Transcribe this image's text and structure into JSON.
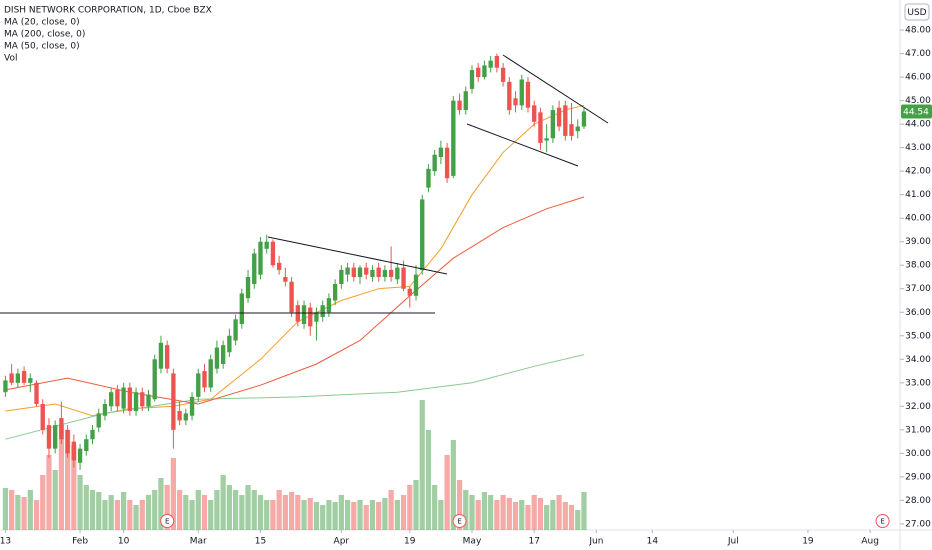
{
  "chart_data": {
    "type": "candlestick",
    "title": "DISH NETWORK CORPORATION, 1D, Cboe BZX",
    "currency": "USD",
    "volume_name": "Vol",
    "up_color": "#43a047",
    "down_color": "#ef5350",
    "open": [
      32.6,
      33.4,
      33.0,
      33.5,
      33.0,
      33.0,
      32.1,
      31.2,
      30.2,
      31.5,
      31.0,
      30.5,
      29.6,
      30.1,
      30.6,
      31.1,
      31.6,
      32.0,
      32.7,
      31.9,
      32.8,
      31.8,
      32.6,
      32.0,
      32.3,
      33.6,
      34.6,
      33.4,
      31.8,
      31.4,
      31.6,
      32.4,
      33.5,
      32.8,
      33.6,
      33.8,
      34.3,
      34.8,
      35.5,
      36.6,
      37.2,
      37.6,
      38.7,
      39.0,
      38.1,
      37.5,
      37.3,
      36.3,
      35.5,
      36.2,
      35.6,
      35.8,
      36.0,
      36.5,
      37.2,
      37.6,
      37.9,
      37.5,
      37.9,
      37.5,
      37.9,
      37.5,
      37.8,
      37.4,
      37.9,
      37.0,
      36.7,
      37.8,
      41.3,
      42.0,
      42.6,
      43.0,
      41.8,
      45.0,
      44.6,
      45.5,
      46.4,
      46.0,
      46.4,
      46.9,
      46.4,
      45.8,
      45.1,
      44.8,
      45.8,
      44.8,
      44.5,
      43.3,
      43.4,
      44.7,
      44.8,
      44.0,
      43.7,
      43.9
    ],
    "high": [
      33.3,
      33.8,
      33.6,
      33.7,
      33.4,
      33.1,
      32.3,
      31.5,
      31.4,
      32.2,
      31.2,
      30.8,
      30.4,
      30.8,
      31.2,
      31.9,
      32.3,
      32.8,
      32.9,
      33.0,
      33.0,
      32.8,
      32.8,
      32.7,
      34.2,
      35.0,
      34.8,
      33.6,
      32.2,
      31.9,
      32.6,
      33.6,
      33.8,
      34.2,
      34.8,
      34.8,
      35.3,
      35.9,
      37.0,
      37.8,
      38.7,
      39.2,
      39.3,
      39.1,
      38.4,
      37.9,
      37.5,
      36.5,
      36.5,
      36.4,
      36.2,
      36.5,
      36.8,
      37.4,
      38.0,
      38.1,
      38.1,
      38.0,
      38.1,
      38.0,
      38.1,
      38.0,
      38.8,
      38.1,
      38.2,
      37.1,
      38.0,
      41.0,
      42.3,
      42.9,
      43.3,
      43.2,
      45.2,
      45.3,
      45.6,
      46.5,
      46.6,
      46.7,
      46.9,
      47.0,
      46.6,
      46.0,
      45.4,
      46.1,
      46.0,
      45.0,
      44.7,
      44.0,
      44.8,
      45.0,
      45.0,
      44.9,
      44.2,
      44.7
    ],
    "low": [
      32.4,
      32.9,
      32.8,
      32.9,
      32.6,
      32.0,
      30.8,
      29.8,
      30.0,
      30.4,
      29.8,
      29.4,
      29.3,
      29.9,
      30.4,
      30.9,
      31.4,
      31.8,
      31.8,
      31.7,
      31.6,
      31.6,
      31.8,
      31.8,
      32.2,
      33.4,
      33.4,
      30.2,
      31.2,
      31.2,
      31.4,
      32.2,
      32.6,
      32.6,
      33.4,
      33.6,
      34.1,
      34.6,
      35.3,
      36.4,
      37.0,
      37.4,
      38.5,
      37.9,
      37.6,
      37.1,
      35.8,
      35.4,
      35.3,
      35.0,
      34.8,
      35.6,
      35.8,
      36.3,
      37.0,
      37.3,
      37.3,
      37.2,
      37.4,
      37.3,
      37.3,
      37.3,
      37.3,
      37.2,
      36.9,
      36.2,
      36.5,
      37.6,
      41.1,
      41.8,
      42.3,
      41.5,
      41.7,
      44.4,
      44.4,
      45.3,
      45.8,
      45.9,
      46.2,
      46.2,
      45.6,
      44.4,
      44.5,
      44.6,
      44.5,
      43.9,
      42.9,
      42.8,
      43.2,
      43.7,
      43.3,
      43.3,
      43.4,
      43.8
    ],
    "close": [
      33.1,
      33.0,
      33.4,
      33.0,
      33.2,
      32.1,
      31.0,
      30.2,
      31.2,
      30.6,
      30.0,
      29.7,
      30.2,
      30.6,
      31.0,
      31.7,
      32.1,
      32.6,
      32.0,
      32.8,
      31.8,
      32.6,
      32.0,
      32.5,
      34.0,
      34.7,
      33.6,
      31.0,
      31.4,
      31.7,
      32.4,
      33.4,
      32.8,
      34.0,
      34.5,
      34.6,
      35.0,
      35.7,
      36.8,
      37.5,
      38.5,
      39.0,
      39.0,
      38.0,
      37.8,
      37.3,
      36.0,
      35.6,
      36.3,
      35.4,
      36.0,
      36.3,
      36.6,
      37.2,
      37.8,
      37.9,
      37.5,
      37.9,
      37.6,
      37.8,
      37.5,
      37.8,
      37.5,
      37.9,
      37.0,
      36.7,
      37.6,
      40.8,
      42.1,
      42.7,
      43.0,
      41.7,
      45.0,
      44.6,
      45.4,
      46.3,
      46.0,
      46.5,
      46.7,
      46.4,
      45.8,
      44.6,
      44.8,
      45.9,
      44.7,
      44.1,
      43.2,
      43.4,
      44.6,
      43.9,
      43.5,
      43.5,
      43.9,
      44.54
    ],
    "volume": [
      42,
      40,
      35,
      33,
      40,
      30,
      55,
      75,
      60,
      105,
      100,
      85,
      55,
      45,
      40,
      38,
      30,
      35,
      30,
      38,
      30,
      25,
      30,
      35,
      40,
      52,
      45,
      72,
      40,
      35,
      30,
      40,
      35,
      30,
      40,
      55,
      45,
      40,
      35,
      45,
      40,
      35,
      30,
      30,
      40,
      35,
      38,
      35,
      30,
      32,
      28,
      25,
      30,
      28,
      35,
      30,
      28,
      30,
      25,
      30,
      28,
      32,
      40,
      30,
      35,
      45,
      50,
      130,
      100,
      45,
      30,
      75,
      90,
      50,
      40,
      35,
      30,
      38,
      35,
      30,
      35,
      32,
      28,
      30,
      25,
      35,
      32,
      25,
      30,
      35,
      28,
      25,
      20,
      38
    ],
    "vlim": [
      0,
      530
    ],
    "series": [
      {
        "name": "MA (20, close, 0)",
        "color": "#f59d2a",
        "x": [
          0,
          8,
          14,
          20,
          27,
          33,
          41,
          47,
          54,
          60,
          65,
          70,
          75,
          80,
          85,
          90,
          93
        ],
        "values": [
          31.8,
          32.1,
          31.6,
          31.9,
          32.0,
          32.3,
          34.0,
          35.6,
          36.5,
          37.0,
          37.1,
          38.7,
          41.0,
          42.8,
          44.0,
          44.6,
          44.8
        ]
      },
      {
        "name": "MA (200, close, 0)",
        "color": "#8cc98f",
        "x": [
          0,
          16,
          31,
          47,
          63,
          75,
          85,
          93
        ],
        "values": [
          30.6,
          31.7,
          32.3,
          32.4,
          32.6,
          33.0,
          33.7,
          34.2
        ]
      },
      {
        "name": "MA (50, close, 0)",
        "color": "#ef5a3c",
        "x": [
          0,
          10,
          20,
          31,
          41,
          50,
          57,
          65,
          72,
          80,
          87,
          93
        ],
        "values": [
          32.7,
          33.2,
          32.6,
          32.1,
          32.9,
          33.8,
          34.8,
          36.7,
          38.3,
          39.6,
          40.4,
          40.9
        ]
      }
    ],
    "events": [
      {
        "x": 26,
        "label": "E"
      },
      {
        "x": 73,
        "label": "E"
      },
      {
        "x": 141,
        "label": "E"
      }
    ],
    "xlim": [
      -0.87,
      143.8
    ],
    "xticks": [
      {
        "value": 0,
        "label": "13"
      },
      {
        "value": 12,
        "label": "Feb"
      },
      {
        "value": 19,
        "label": "10"
      },
      {
        "value": 31,
        "label": "Mar"
      },
      {
        "value": 41,
        "label": "15"
      },
      {
        "value": 54,
        "label": "Apr"
      },
      {
        "value": 65,
        "label": "19"
      },
      {
        "value": 75,
        "label": "May"
      },
      {
        "value": 85,
        "label": "17"
      },
      {
        "value": 95,
        "label": "Jun"
      },
      {
        "value": 104,
        "label": "14"
      },
      {
        "value": 117,
        "label": "Jul"
      },
      {
        "value": 129,
        "label": "19"
      },
      {
        "value": 139,
        "label": "Aug"
      }
    ],
    "ylim": [
      26.74,
      49.28
    ],
    "yticks": [
      {
        "value": 27,
        "label": "27.00"
      },
      {
        "value": 28,
        "label": "28.00"
      },
      {
        "value": 29,
        "label": "29.00"
      },
      {
        "value": 30,
        "label": "30.00"
      },
      {
        "value": 31,
        "label": "31.00"
      },
      {
        "value": 32,
        "label": "32.00"
      },
      {
        "value": 33,
        "label": "33.00"
      },
      {
        "value": 34,
        "label": "34.00"
      },
      {
        "value": 35,
        "label": "35.00"
      },
      {
        "value": 36,
        "label": "36.00"
      },
      {
        "value": 37,
        "label": "37.00"
      },
      {
        "value": 38,
        "label": "38.00"
      },
      {
        "value": 39,
        "label": "39.00"
      },
      {
        "value": 40,
        "label": "40.00"
      },
      {
        "value": 41,
        "label": "41.00"
      },
      {
        "value": 42,
        "label": "42.00"
      },
      {
        "value": 43,
        "label": "43.00"
      },
      {
        "value": 44,
        "label": "44.00"
      },
      {
        "value": 45,
        "label": "45.00"
      },
      {
        "value": 46,
        "label": "46.00"
      },
      {
        "value": 47,
        "label": "47.00"
      },
      {
        "value": 48,
        "label": "48.00"
      }
    ]
  }
}
